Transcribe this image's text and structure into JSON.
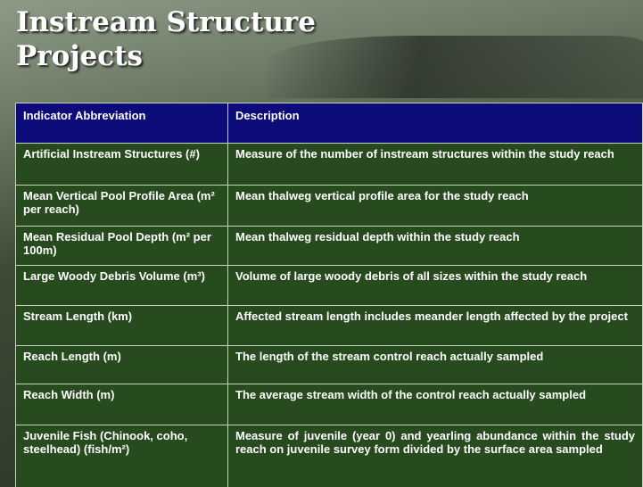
{
  "title": "Instream Structure Projects",
  "table": {
    "header": [
      "Indicator Abbreviation",
      "Description"
    ],
    "rows": [
      [
        "Artificial Instream Structures (#)",
        "Measure of the number of instream structures within the study reach"
      ],
      [
        "Mean Vertical Pool Profile Area (m² per reach)",
        "Mean thalweg vertical profile area for the study reach"
      ],
      [
        "Mean Residual Pool Depth (m² per 100m)",
        "Mean thalweg residual depth within the study reach"
      ],
      [
        "Large Woody Debris Volume (m³)",
        "Volume of large woody debris of all sizes within the study reach"
      ],
      [
        "Stream Length (km)",
        "Affected stream length includes meander length affected by the project"
      ],
      [
        "Reach Length (m)",
        "The length of the stream control reach actually sampled"
      ],
      [
        "Reach Width (m)",
        "The average stream width of the control reach actually sampled"
      ],
      [
        "Juvenile Fish (Chinook, coho, steelhead) (fish/m²)",
        "Measure of juvenile (year 0) and yearling abundance within the study reach on juvenile survey form divided by the surface area sampled"
      ]
    ]
  }
}
